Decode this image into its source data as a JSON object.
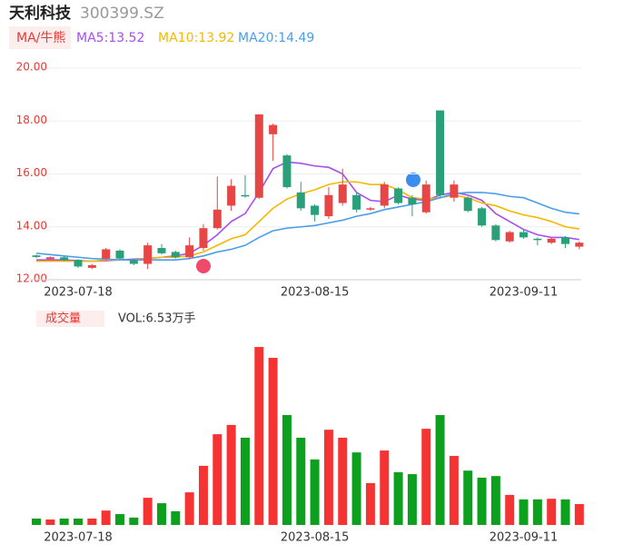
{
  "header": {
    "name": "天利科技",
    "code": "300399.SZ",
    "ma_tag": "MA/牛熊",
    "vol_tag": "成交量",
    "vol_text": "VOL:6.53万手"
  },
  "chart_data": [
    {
      "type": "candlestick",
      "categories": [
        null,
        null,
        null,
        "2023-07-18",
        null,
        null,
        null,
        null,
        null,
        null,
        null,
        null,
        null,
        null,
        null,
        null,
        null,
        null,
        null,
        null,
        "2023-08-15",
        null,
        null,
        null,
        null,
        null,
        null,
        null,
        null,
        null,
        null,
        null,
        null,
        null,
        null,
        "2023-09-11",
        null,
        null,
        null,
        null
      ],
      "open": [
        12.92,
        12.78,
        12.85,
        12.75,
        12.45,
        12.8,
        13.1,
        12.75,
        12.6,
        13.2,
        13.05,
        12.85,
        13.2,
        13.95,
        14.8,
        15.2,
        15.1,
        17.5,
        16.7,
        15.3,
        14.8,
        14.4,
        14.9,
        15.2,
        14.65,
        14.8,
        15.45,
        15.1,
        14.55,
        18.4,
        15.1,
        15.1,
        14.7,
        14.05,
        13.45,
        13.8,
        13.55,
        13.4,
        13.6,
        13.25
      ],
      "high": [
        12.95,
        12.88,
        12.9,
        12.78,
        12.6,
        13.2,
        13.15,
        12.8,
        13.4,
        13.35,
        13.1,
        13.6,
        14.1,
        15.9,
        15.8,
        15.95,
        18.25,
        17.9,
        16.75,
        15.7,
        14.85,
        15.5,
        16.2,
        15.3,
        14.75,
        15.7,
        15.5,
        15.2,
        15.75,
        18.4,
        15.75,
        15.15,
        14.75,
        14.1,
        13.85,
        13.9,
        13.6,
        13.6,
        13.65,
        13.45
      ],
      "low": [
        12.82,
        12.74,
        12.7,
        12.45,
        12.4,
        12.75,
        12.75,
        12.55,
        12.4,
        12.95,
        12.8,
        12.8,
        13.1,
        13.9,
        14.6,
        15.1,
        15.05,
        16.5,
        15.45,
        14.6,
        14.2,
        14.3,
        14.8,
        14.55,
        14.6,
        14.7,
        14.85,
        14.4,
        14.5,
        15.1,
        14.95,
        14.55,
        14.0,
        13.45,
        13.4,
        13.55,
        13.3,
        13.35,
        13.2,
        13.15
      ],
      "close": [
        12.86,
        12.85,
        12.75,
        12.5,
        12.55,
        13.15,
        12.8,
        12.6,
        13.3,
        13.0,
        12.85,
        13.3,
        13.95,
        14.65,
        15.55,
        15.15,
        18.25,
        17.85,
        15.5,
        14.7,
        14.45,
        15.2,
        15.6,
        14.65,
        14.7,
        15.6,
        14.9,
        14.85,
        15.6,
        15.2,
        15.6,
        14.6,
        14.05,
        13.5,
        13.8,
        13.6,
        13.5,
        13.55,
        13.35,
        13.4
      ],
      "up_color": "#e84545",
      "down_color": "#2aa07a",
      "series": [
        {
          "name": "MA5:13.52",
          "color": "#a64ef0",
          "values": [
            12.75,
            12.75,
            12.75,
            12.72,
            12.7,
            12.72,
            12.75,
            12.78,
            12.8,
            12.85,
            12.9,
            13.0,
            13.3,
            13.7,
            14.2,
            14.5,
            15.3,
            16.2,
            16.45,
            16.4,
            16.3,
            16.25,
            16.0,
            15.3,
            15.0,
            14.95,
            15.2,
            15.05,
            15.0,
            15.2,
            15.3,
            15.2,
            15.0,
            14.5,
            14.2,
            13.9,
            13.7,
            13.6,
            13.6,
            13.52
          ]
        },
        {
          "name": "MA10:13.92",
          "color": "#f5b800",
          "values": [
            12.7,
            12.7,
            12.7,
            12.7,
            12.7,
            12.75,
            12.75,
            12.75,
            12.8,
            12.85,
            12.85,
            12.9,
            13.05,
            13.3,
            13.55,
            13.7,
            14.2,
            14.7,
            15.05,
            15.25,
            15.4,
            15.6,
            15.7,
            15.7,
            15.6,
            15.6,
            15.4,
            15.1,
            15.05,
            15.1,
            15.2,
            15.1,
            14.9,
            14.8,
            14.6,
            14.45,
            14.35,
            14.2,
            14.0,
            13.92
          ]
        },
        {
          "name": "MA20:14.49",
          "color": "#4a9ee8",
          "values": [
            13.0,
            12.95,
            12.9,
            12.85,
            12.8,
            12.78,
            12.75,
            12.75,
            12.75,
            12.75,
            12.75,
            12.8,
            12.9,
            13.05,
            13.15,
            13.3,
            13.6,
            13.85,
            13.95,
            14.0,
            14.05,
            14.15,
            14.25,
            14.4,
            14.5,
            14.65,
            14.75,
            14.85,
            14.95,
            15.1,
            15.25,
            15.3,
            15.3,
            15.25,
            15.15,
            15.1,
            14.9,
            14.7,
            14.55,
            14.49
          ]
        }
      ],
      "ylim": [
        12,
        20
      ],
      "yticks": [
        {
          "value": 12,
          "label": "12.00"
        },
        {
          "value": 14,
          "label": "14.00"
        },
        {
          "value": 16,
          "label": "16.00"
        },
        {
          "value": 18,
          "label": "18.00"
        },
        {
          "value": 20,
          "label": "20.00"
        }
      ],
      "grid": true
    },
    {
      "type": "bar",
      "values": [
        2.0,
        1.7,
        2.0,
        2.0,
        2.0,
        4.5,
        3.4,
        2.3,
        8.5,
        6.8,
        4.3,
        10.2,
        18.5,
        28.4,
        31.3,
        27.3,
        55.7,
        52.3,
        34.4,
        27.3,
        20.5,
        29.8,
        27.3,
        22.7,
        13.1,
        23.3,
        16.5,
        15.9,
        30.1,
        34.4,
        21.6,
        17.0,
        14.8,
        15.3,
        9.4,
        8.0,
        8.0,
        8.2,
        8.0,
        6.53
      ],
      "up_color": "#f53333",
      "down_color": "#0ca01e",
      "ylim": [
        0,
        56
      ]
    }
  ]
}
